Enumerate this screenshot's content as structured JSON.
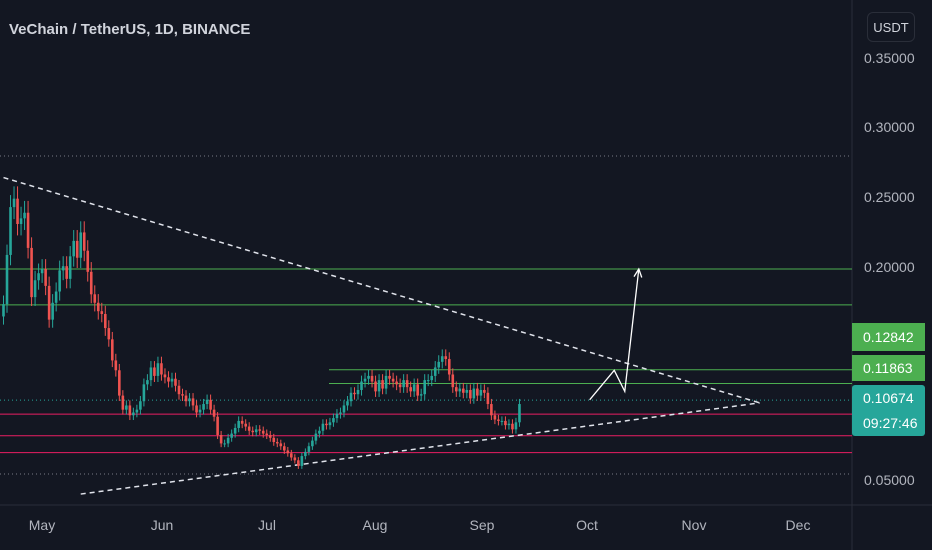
{
  "header": {
    "title": "VeChain / TetherUS, 1D, BINANCE",
    "currency": "USDT"
  },
  "colors": {
    "background": "#131722",
    "up": "#26a69a",
    "down": "#ef5350",
    "resistance": "#4caf50",
    "support": "#e91e63",
    "grid": "#2a2e39",
    "badge_green": "#4caf50",
    "badge_teal": "#26a69a"
  },
  "chart_data": {
    "type": "candlestick",
    "title": "VeChain / TetherUS, 1D, BINANCE",
    "y_axis": {
      "ticks": [
        0.35,
        0.3,
        0.25,
        0.2,
        0.05
      ],
      "tick_labels": [
        "0.35000",
        "0.30000",
        "0.25000",
        "0.20000",
        "0.05000"
      ],
      "range": [
        0.04,
        0.37
      ]
    },
    "x_axis": {
      "labels": [
        "May",
        "Jun",
        "Jul",
        "Aug",
        "Sep",
        "Oct",
        "Nov",
        "Dec"
      ],
      "label_dates": [
        "2021-05-01",
        "2021-06-01",
        "2021-07-01",
        "2021-08-01",
        "2021-09-01",
        "2021-10-01",
        "2021-11-01",
        "2021-12-01"
      ],
      "range": [
        "2021-04-27",
        "2021-12-15"
      ]
    },
    "daily_close": [
      0.175,
      0.21,
      0.244,
      0.25,
      0.232,
      0.236,
      0.24,
      0.215,
      0.18,
      0.192,
      0.197,
      0.2,
      0.188,
      0.164,
      0.176,
      0.184,
      0.199,
      0.202,
      0.193,
      0.209,
      0.22,
      0.208,
      0.226,
      0.213,
      0.198,
      0.182,
      0.176,
      0.17,
      0.168,
      0.158,
      0.15,
      0.135,
      0.128,
      0.11,
      0.1,
      0.103,
      0.096,
      0.098,
      0.1,
      0.106,
      0.118,
      0.121,
      0.13,
      0.124,
      0.133,
      0.125,
      0.123,
      0.12,
      0.122,
      0.117,
      0.111,
      0.11,
      0.106,
      0.108,
      0.103,
      0.098,
      0.1,
      0.104,
      0.107,
      0.1,
      0.095,
      0.082,
      0.076,
      0.076,
      0.08,
      0.083,
      0.087,
      0.092,
      0.09,
      0.088,
      0.085,
      0.084,
      0.086,
      0.085,
      0.083,
      0.082,
      0.08,
      0.077,
      0.076,
      0.074,
      0.071,
      0.069,
      0.066,
      0.064,
      0.06,
      0.067,
      0.07,
      0.074,
      0.078,
      0.083,
      0.085,
      0.09,
      0.089,
      0.091,
      0.094,
      0.097,
      0.098,
      0.103,
      0.106,
      0.112,
      0.111,
      0.114,
      0.12,
      0.122,
      0.124,
      0.12,
      0.113,
      0.121,
      0.115,
      0.124,
      0.122,
      0.12,
      0.118,
      0.116,
      0.121,
      0.116,
      0.113,
      0.118,
      0.11,
      0.111,
      0.121,
      0.121,
      0.124,
      0.13,
      0.134,
      0.138,
      0.136,
      0.125,
      0.116,
      0.113,
      0.115,
      0.112,
      0.114,
      0.108,
      0.115,
      0.11,
      0.114,
      0.112,
      0.104,
      0.096,
      0.093,
      0.092,
      0.092,
      0.089,
      0.09,
      0.086,
      0.091,
      0.104
    ],
    "first_date": "2021-04-27",
    "last_price": "0.10674",
    "countdown": "09:27:46",
    "horizontal_levels": [
      {
        "label": "0.12842",
        "value": 0.12842,
        "kind": "resistance"
      },
      {
        "label": "0.11863",
        "value": 0.11863,
        "kind": "resistance"
      },
      {
        "label": "",
        "value": 0.2,
        "kind": "resistance"
      },
      {
        "label": "",
        "value": 0.1745,
        "kind": "resistance"
      },
      {
        "label": "",
        "value": 0.0968,
        "kind": "support"
      },
      {
        "label": "",
        "value": 0.0695,
        "kind": "support"
      },
      {
        "label": "",
        "value": 0.0815,
        "kind": "support"
      }
    ],
    "trendlines": [
      {
        "name": "descending resistance",
        "from": [
          "2021-04-27",
          0.265
        ],
        "to": [
          "2021-11-25",
          0.102
        ]
      },
      {
        "name": "ascending support",
        "from": [
          "2021-05-19",
          0.04
        ],
        "to": [
          "2021-11-25",
          0.102
        ]
      }
    ],
    "projection_path": [
      [
        "2021-10-11",
        0.107
      ],
      [
        "2021-10-18",
        0.128
      ],
      [
        "2021-10-21",
        0.113
      ],
      [
        "2021-10-25",
        0.2
      ]
    ]
  }
}
